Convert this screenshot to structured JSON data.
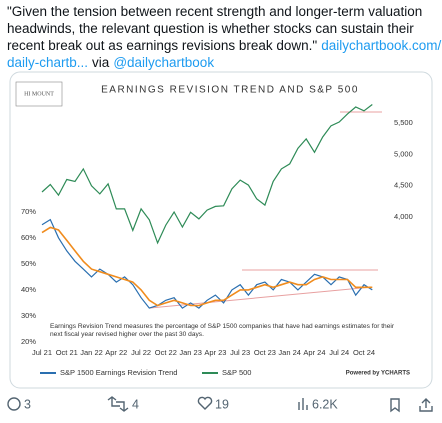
{
  "tweet": {
    "lines": [
      [
        "\"Given the tension between recent strength and longer-term valuation"
      ],
      [
        "headwinds, the relevant question is whether stocks can sustain their"
      ],
      [
        "recent break out as earnings revisions break down.\"",
        "dailychartbook.com/p/"
      ],
      [
        "daily-chartb...",
        "via",
        "@dailychartbook"
      ]
    ],
    "actions": {
      "replies": "3",
      "reposts": "4",
      "likes": "19",
      "views": "6.2K"
    }
  },
  "chart_data": {
    "type": "line",
    "title": "EARNINGS REVISION TREND AND S&P 500",
    "logo": "HI MOUNT",
    "note": [
      "Earnings Revision Trend measures the percentage of S&P 1500 companies that have had earnings estimates for their",
      "next fiscal year revised higher over the past 30 days."
    ],
    "credit": "Powered by YCHARTS",
    "categories": [
      "Jul 21",
      null,
      null,
      "Oct 21",
      null,
      null,
      "Jan 22",
      null,
      null,
      "Apr 22",
      null,
      null,
      "Jul 22",
      null,
      null,
      "Oct 22",
      null,
      null,
      "Jan 23",
      null,
      null,
      "Apr 23",
      null,
      null,
      "Jul 23",
      null,
      null,
      "Oct 23",
      null,
      null,
      "Jan 24",
      null,
      null,
      "Apr 24",
      null,
      null,
      "Jul 24",
      null,
      null,
      "Oct 24",
      null
    ],
    "series": [
      {
        "name": "S&P 1500 Earnings Revision Trend",
        "color": "#2a6fb0",
        "values": [
          65,
          67,
          60,
          55,
          51,
          48,
          45,
          48,
          46,
          43,
          45,
          42,
          37,
          33,
          34,
          36,
          37,
          33,
          35,
          33,
          36,
          38,
          35,
          40,
          42,
          38,
          42,
          43,
          40,
          44,
          43,
          40,
          43,
          46,
          45,
          42,
          45,
          44,
          38,
          42,
          40
        ]
      },
      {
        "color": "#f08c1e",
        "values": [
          62,
          64,
          63,
          59,
          55,
          51,
          48,
          47,
          46,
          45,
          44,
          43,
          40,
          36,
          34,
          35,
          36,
          35,
          34,
          34,
          35,
          36,
          36,
          38,
          40,
          40,
          41,
          42,
          41,
          42,
          43,
          42,
          42,
          44,
          45,
          44,
          44,
          44,
          41,
          41,
          41
        ]
      },
      {
        "name": "S&P 500",
        "color": "#2e8b57",
        "axis": "y2",
        "values": [
          4400,
          4520,
          4350,
          4600,
          4570,
          4770,
          4500,
          4370,
          4530,
          4130,
          4130,
          3785,
          4130,
          3955,
          3585,
          3870,
          4080,
          3840,
          4075,
          3970,
          4110,
          4170,
          4180,
          4450,
          4590,
          4510,
          4290,
          4190,
          4570,
          4770,
          4850,
          5100,
          5250,
          5035,
          5280,
          5460,
          5520,
          5650,
          5760,
          5700,
          5800
        ]
      }
    ],
    "ylim": [
      20,
      116
    ],
    "yticks": [
      {
        "value": 20,
        "label": "20%"
      },
      {
        "value": 30,
        "label": "30%"
      },
      {
        "value": 40,
        "label": "40%"
      },
      {
        "value": 50,
        "label": "50%"
      },
      {
        "value": 60,
        "label": "60%"
      },
      {
        "value": 70,
        "label": "70%"
      }
    ],
    "y2lim": [
      2000,
      6000
    ],
    "y2ticks": [
      {
        "value": 4000,
        "label": "4,000"
      },
      {
        "value": 4500,
        "label": "4,500"
      },
      {
        "value": 5000,
        "label": "5,000"
      },
      {
        "value": 5500,
        "label": "5,500"
      }
    ]
  }
}
